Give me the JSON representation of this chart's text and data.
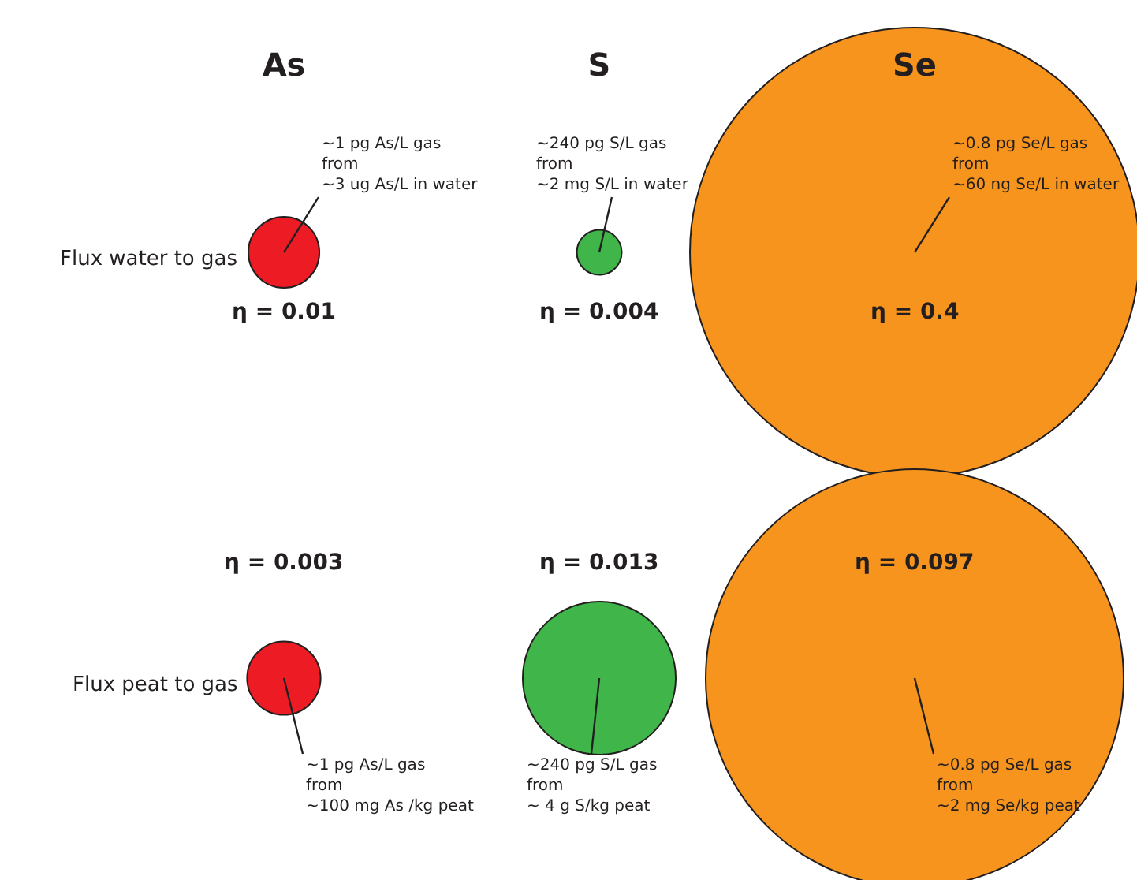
{
  "chart_data": {
    "type": "other",
    "categories": [
      "As",
      "S",
      "Se"
    ],
    "colors": [
      "#ed1c24",
      "#3fb54a",
      "#f7941d"
    ],
    "series": [
      {
        "values": [
          0.01,
          0.004,
          0.4
        ],
        "value_labels": [
          "η = 0.01",
          "η = 0.004",
          "η = 0.4"
        ]
      },
      {
        "values": [
          0.003,
          0.013,
          0.097
        ],
        "value_labels": [
          "η = 0.003",
          "η = 0.013",
          "η = 0.097"
        ]
      }
    ],
    "annotations": [
      "Flux water to gas",
      "~1 pg As/L gas\nfrom\n~3 ug As/L in water",
      "~240 pg S/L gas\nfrom\n~2 mg S/L in water",
      "~0.8 pg Se/L gas\nfrom\n~60 ng Se/L in water",
      "Flux peat to gas",
      "~1 pg As/L gas\nfrom\n~100 mg As /kg peat",
      "~240 pg S/L gas\nfrom\n~ 4 g S/kg peat",
      "~0.8 pg Se/L gas\nfrom\n~2 mg Se/kg peat"
    ]
  }
}
